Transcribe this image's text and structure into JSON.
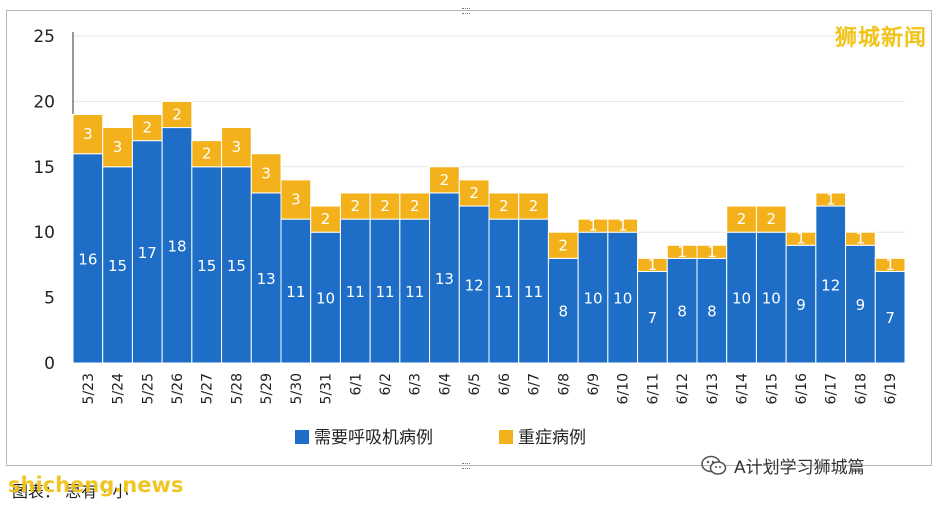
{
  "brand": "狮城新闻",
  "account_label": "A计划学习狮城篇",
  "footer_label": "图表：",
  "footer_label_2": "思有 · 小",
  "watermark": "shicheng.news",
  "colors": {
    "series1": "#1e6ec8",
    "series2": "#f3b21c",
    "grid": "#e6e6e6"
  },
  "chart_data": {
    "type": "bar",
    "stacked": true,
    "categories": [
      "5/23",
      "5/24",
      "5/25",
      "5/26",
      "5/27",
      "5/28",
      "5/29",
      "5/30",
      "5/31",
      "6/1",
      "6/2",
      "6/3",
      "6/4",
      "6/5",
      "6/6",
      "6/7",
      "6/8",
      "6/9",
      "6/10",
      "6/11",
      "6/12",
      "6/13",
      "6/14",
      "6/15",
      "6/16",
      "6/17",
      "6/18",
      "6/19"
    ],
    "series": [
      {
        "name": "需要呼吸机病例",
        "values": [
          16,
          15,
          17,
          18,
          15,
          15,
          13,
          11,
          10,
          11,
          11,
          11,
          13,
          12,
          11,
          11,
          8,
          10,
          10,
          7,
          8,
          8,
          10,
          10,
          9,
          12,
          9,
          7
        ]
      },
      {
        "name": "重症病例",
        "values": [
          3,
          3,
          2,
          2,
          2,
          3,
          3,
          3,
          2,
          2,
          2,
          2,
          2,
          2,
          2,
          2,
          2,
          1,
          1,
          1,
          1,
          1,
          2,
          2,
          1,
          1,
          1,
          1
        ]
      }
    ],
    "ylim": [
      0,
      25
    ],
    "yticks": [
      0,
      5,
      10,
      15,
      20,
      25
    ],
    "grid": true,
    "legend": "bottom"
  }
}
